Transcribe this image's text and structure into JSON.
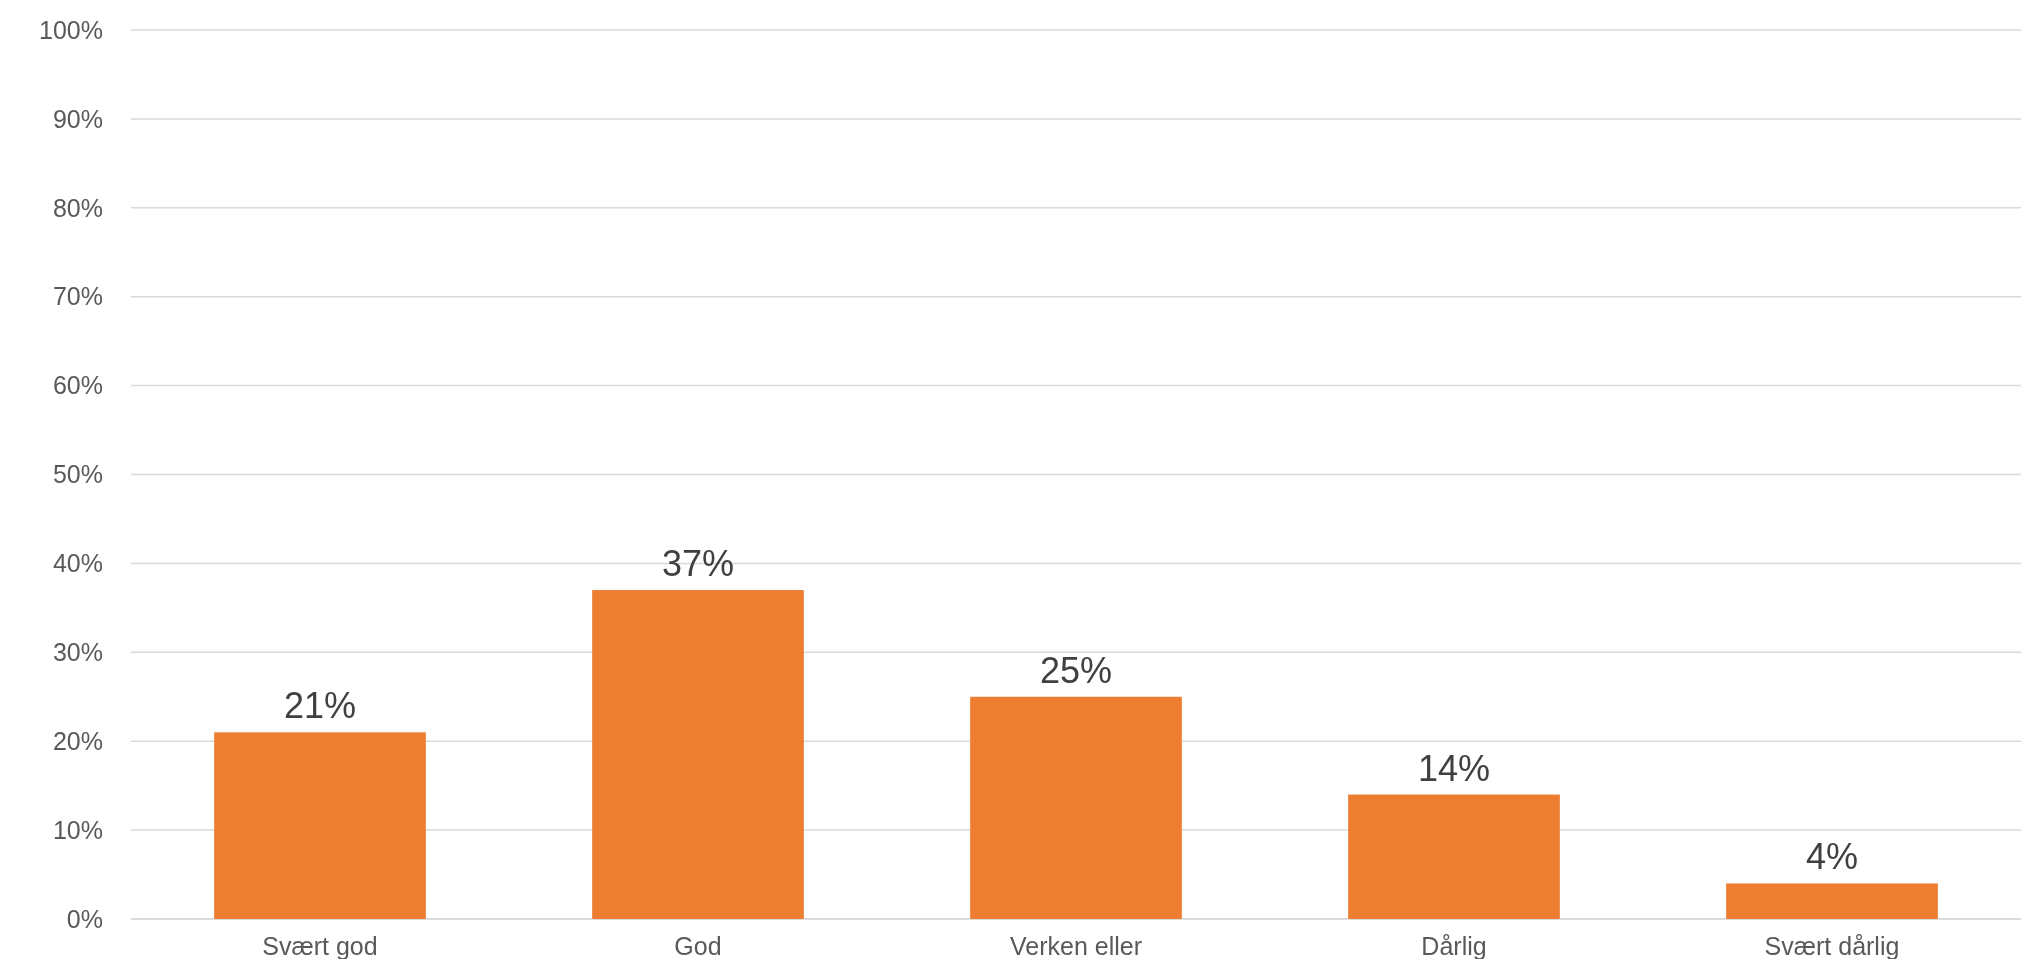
{
  "chart_data": {
    "type": "bar",
    "categories": [
      "Svært god",
      "God",
      "Verken eller",
      "Dårlig",
      "Svært dårlig"
    ],
    "values": [
      21,
      37,
      25,
      14,
      4
    ],
    "value_labels": [
      "21%",
      "37%",
      "25%",
      "14%",
      "4%"
    ],
    "color": "#ed7d31",
    "grid": "y",
    "ylim": [
      0,
      100
    ],
    "yticks": [
      {
        "value": 0,
        "label": "0%"
      },
      {
        "value": 10,
        "label": "10%"
      },
      {
        "value": 20,
        "label": "20%"
      },
      {
        "value": 30,
        "label": "30%"
      },
      {
        "value": 40,
        "label": "40%"
      },
      {
        "value": 50,
        "label": "50%"
      },
      {
        "value": 60,
        "label": "60%"
      },
      {
        "value": 70,
        "label": "70%"
      },
      {
        "value": 80,
        "label": "80%"
      },
      {
        "value": 90,
        "label": "90%"
      },
      {
        "value": 100,
        "label": "100%"
      }
    ]
  }
}
